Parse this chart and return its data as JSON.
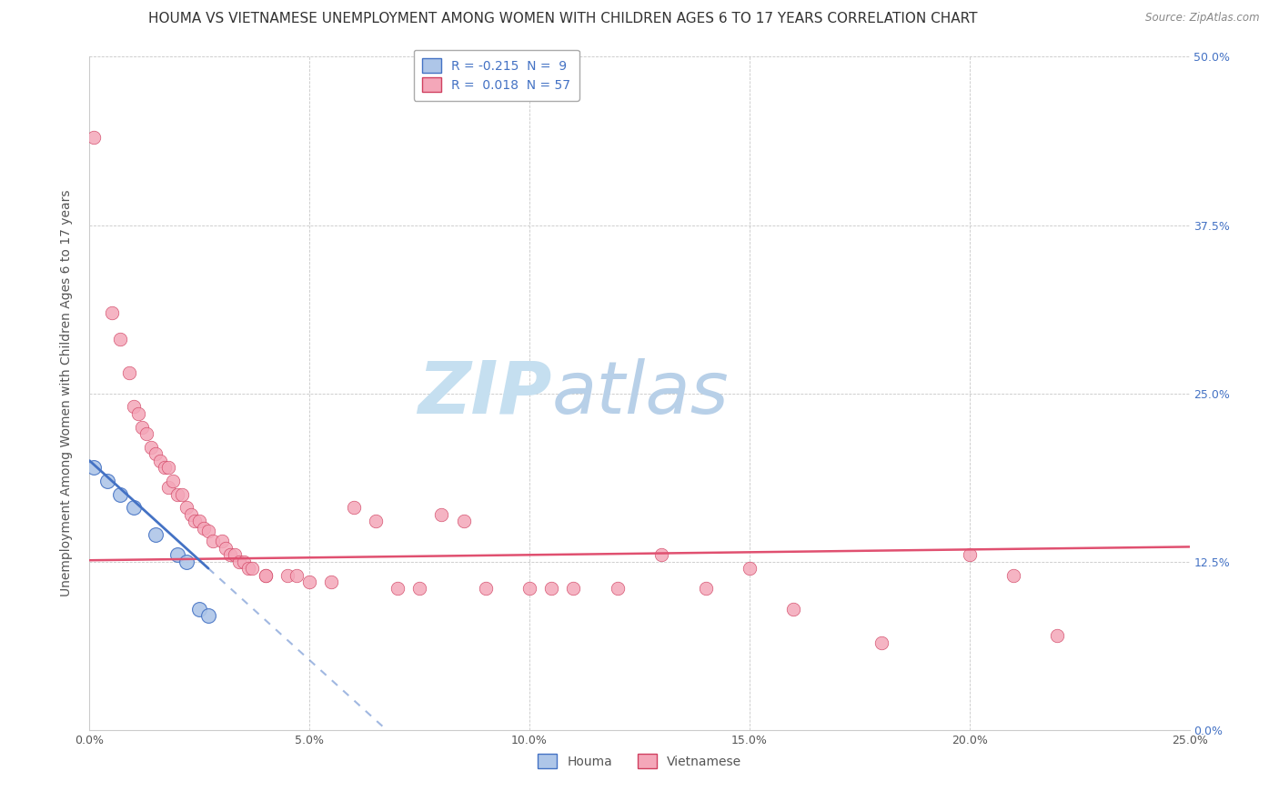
{
  "title": "HOUMA VS VIETNAMESE UNEMPLOYMENT AMONG WOMEN WITH CHILDREN AGES 6 TO 17 YEARS CORRELATION CHART",
  "source": "Source: ZipAtlas.com",
  "ylabel": "Unemployment Among Women with Children Ages 6 to 17 years",
  "houma_R": -0.215,
  "houma_N": 9,
  "vietnamese_R": 0.018,
  "vietnamese_N": 57,
  "houma_color": "#aec6e8",
  "vietnamese_color": "#f4a7b9",
  "houma_line_color": "#4472c4",
  "vietnamese_line_color": "#e05070",
  "houma_scatter": [
    [
      0.001,
      0.195
    ],
    [
      0.004,
      0.185
    ],
    [
      0.007,
      0.175
    ],
    [
      0.01,
      0.165
    ],
    [
      0.015,
      0.145
    ],
    [
      0.02,
      0.13
    ],
    [
      0.022,
      0.125
    ],
    [
      0.025,
      0.09
    ],
    [
      0.027,
      0.085
    ]
  ],
  "vietnamese_scatter": [
    [
      0.001,
      0.44
    ],
    [
      0.005,
      0.31
    ],
    [
      0.007,
      0.29
    ],
    [
      0.009,
      0.265
    ],
    [
      0.01,
      0.24
    ],
    [
      0.011,
      0.235
    ],
    [
      0.012,
      0.225
    ],
    [
      0.013,
      0.22
    ],
    [
      0.014,
      0.21
    ],
    [
      0.015,
      0.205
    ],
    [
      0.016,
      0.2
    ],
    [
      0.017,
      0.195
    ],
    [
      0.018,
      0.195
    ],
    [
      0.018,
      0.18
    ],
    [
      0.019,
      0.185
    ],
    [
      0.02,
      0.175
    ],
    [
      0.021,
      0.175
    ],
    [
      0.022,
      0.165
    ],
    [
      0.023,
      0.16
    ],
    [
      0.024,
      0.155
    ],
    [
      0.025,
      0.155
    ],
    [
      0.026,
      0.15
    ],
    [
      0.027,
      0.148
    ],
    [
      0.028,
      0.14
    ],
    [
      0.03,
      0.14
    ],
    [
      0.031,
      0.135
    ],
    [
      0.032,
      0.13
    ],
    [
      0.033,
      0.13
    ],
    [
      0.034,
      0.125
    ],
    [
      0.035,
      0.125
    ],
    [
      0.036,
      0.12
    ],
    [
      0.037,
      0.12
    ],
    [
      0.04,
      0.115
    ],
    [
      0.04,
      0.115
    ],
    [
      0.045,
      0.115
    ],
    [
      0.047,
      0.115
    ],
    [
      0.05,
      0.11
    ],
    [
      0.055,
      0.11
    ],
    [
      0.06,
      0.165
    ],
    [
      0.065,
      0.155
    ],
    [
      0.07,
      0.105
    ],
    [
      0.075,
      0.105
    ],
    [
      0.08,
      0.16
    ],
    [
      0.085,
      0.155
    ],
    [
      0.09,
      0.105
    ],
    [
      0.1,
      0.105
    ],
    [
      0.105,
      0.105
    ],
    [
      0.11,
      0.105
    ],
    [
      0.12,
      0.105
    ],
    [
      0.13,
      0.13
    ],
    [
      0.14,
      0.105
    ],
    [
      0.15,
      0.12
    ],
    [
      0.16,
      0.09
    ],
    [
      0.18,
      0.065
    ],
    [
      0.2,
      0.13
    ],
    [
      0.21,
      0.115
    ],
    [
      0.22,
      0.07
    ]
  ],
  "xlim": [
    0.0,
    0.25
  ],
  "ylim": [
    0.0,
    0.5
  ],
  "xticks": [
    0.0,
    0.05,
    0.1,
    0.15,
    0.2,
    0.25
  ],
  "yticks": [
    0.0,
    0.125,
    0.25,
    0.375,
    0.5
  ],
  "background_color": "#ffffff",
  "grid_color": "#c8c8c8",
  "watermark_zip_color": "#c8dff0",
  "watermark_atlas_color": "#b0c8e0",
  "title_fontsize": 11,
  "axis_label_fontsize": 10,
  "tick_fontsize": 9,
  "legend_fontsize": 10,
  "houma_trend_start_x": 0.0,
  "houma_trend_end_x": 0.027,
  "houma_trend_dashed_end_x": 0.18,
  "houma_trend_start_y": 0.2,
  "houma_trend_cross_y": 0.12,
  "vietnamese_trend_start_x": 0.0,
  "vietnamese_trend_end_x": 0.25,
  "vietnamese_trend_start_y": 0.126,
  "vietnamese_trend_end_y": 0.136
}
